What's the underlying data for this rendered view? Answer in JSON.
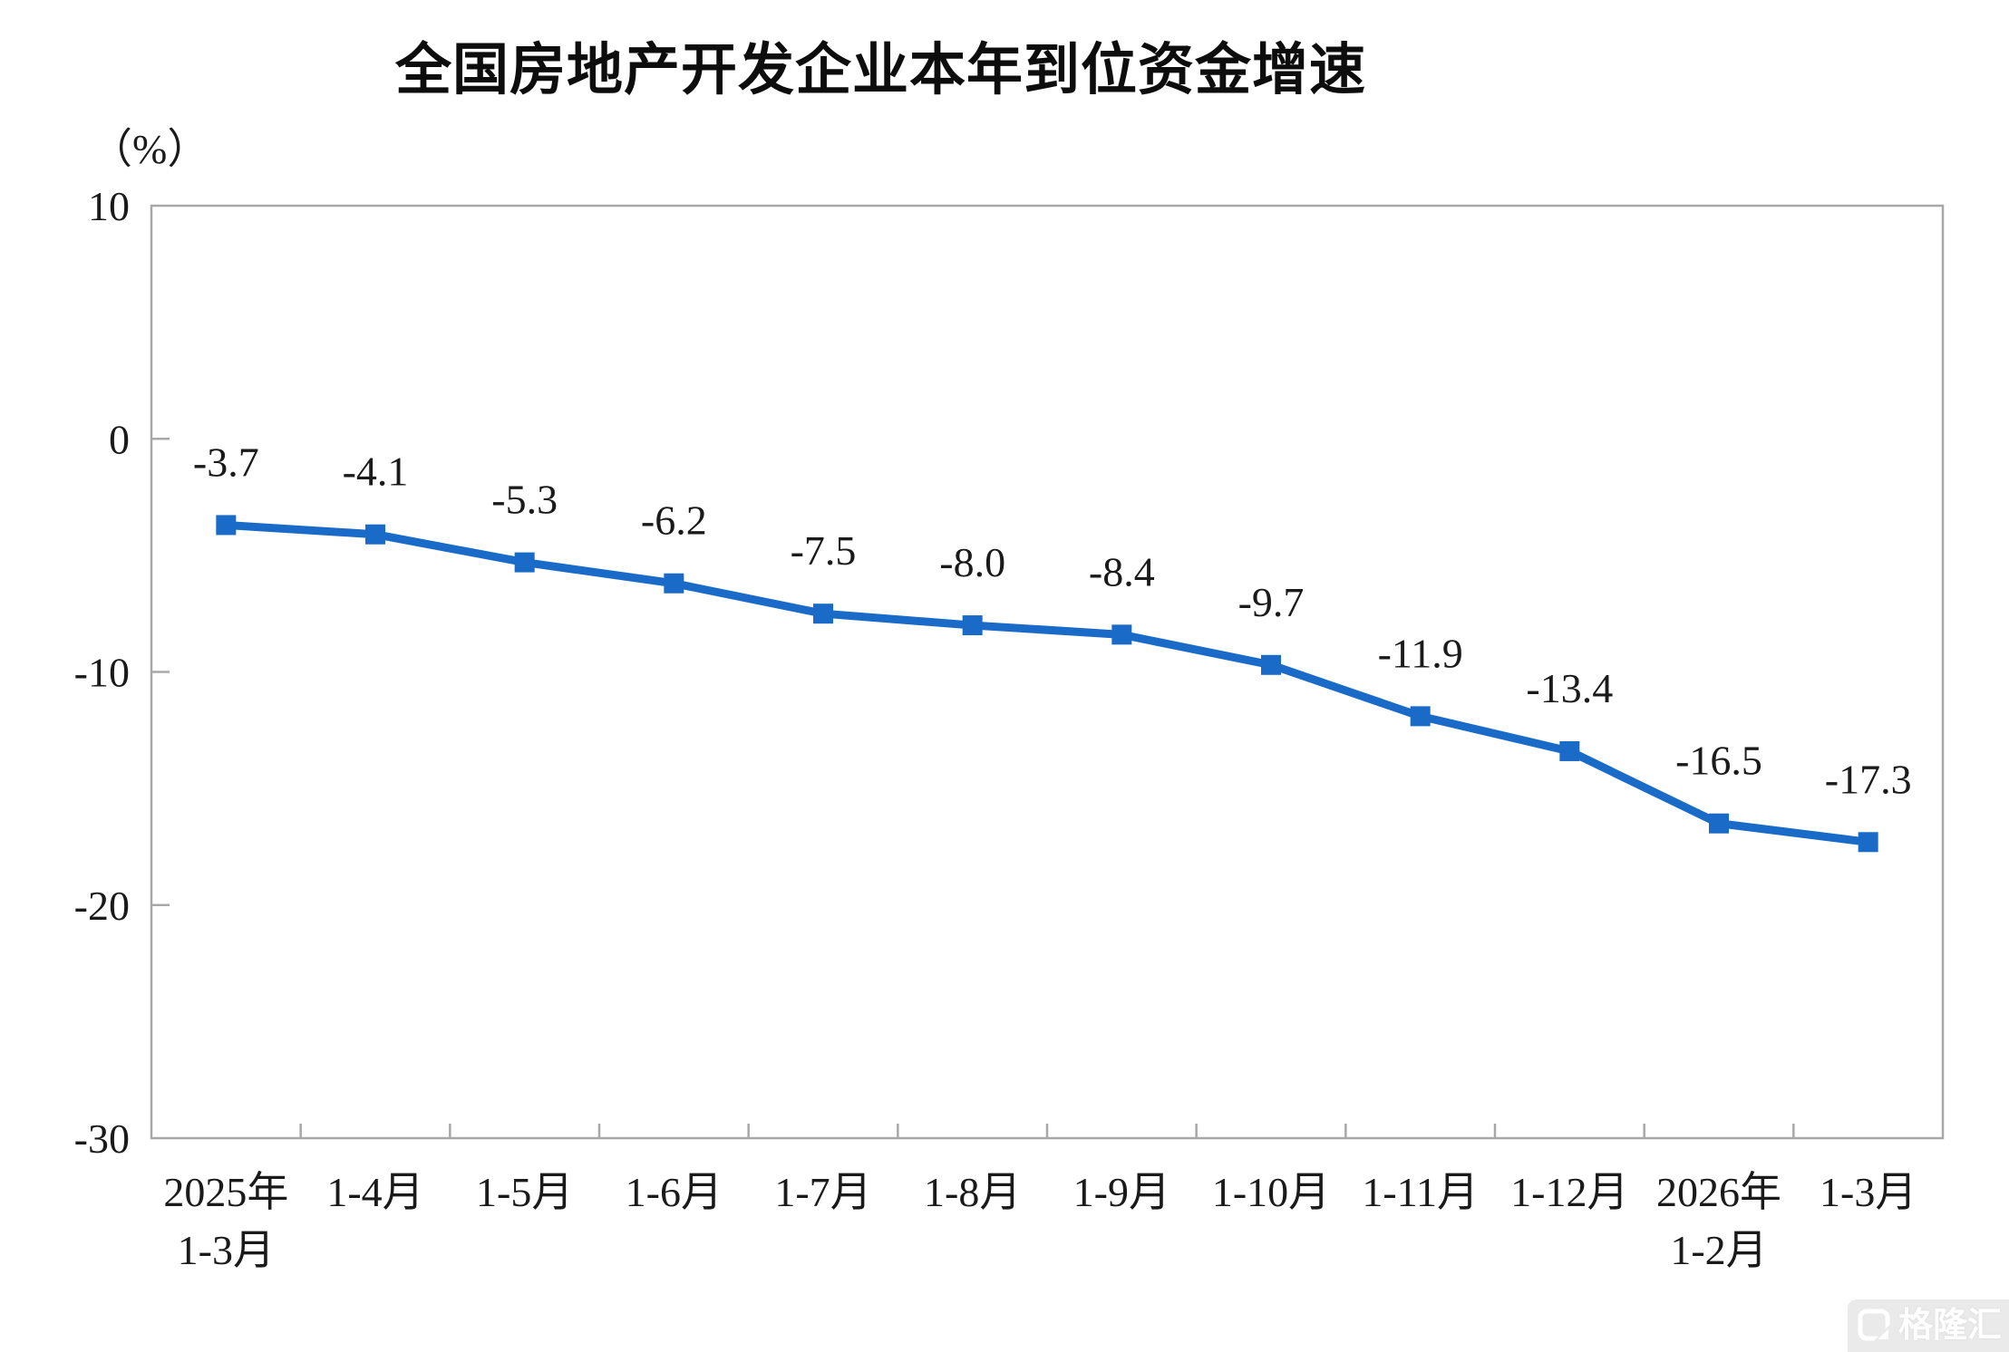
{
  "page": {
    "background": "#ffffff"
  },
  "chart_data": {
    "type": "line",
    "title": "全国房地产开发企业本年到位资金增速",
    "unit_label": "（%）",
    "categories": [
      [
        "2025年",
        "1-3月"
      ],
      [
        "1-4月"
      ],
      [
        "1-5月"
      ],
      [
        "1-6月"
      ],
      [
        "1-7月"
      ],
      [
        "1-8月"
      ],
      [
        "1-9月"
      ],
      [
        "1-10月"
      ],
      [
        "1-11月"
      ],
      [
        "1-12月"
      ],
      [
        "2026年",
        "1-2月"
      ],
      [
        "1-3月"
      ]
    ],
    "values": [
      -3.7,
      -4.1,
      -5.3,
      -6.2,
      -7.5,
      -8.0,
      -8.4,
      -9.7,
      -11.9,
      -13.4,
      -16.5,
      -17.3
    ],
    "data_labels": [
      "-3.7",
      "-4.1",
      "-5.3",
      "-6.2",
      "-7.5",
      "-8.0",
      "-8.4",
      "-9.7",
      "-11.9",
      "-13.4",
      "-16.5",
      "-17.3"
    ],
    "y_ticks": [
      10,
      0,
      -10,
      -20,
      -30
    ],
    "ylim": [
      -30,
      10
    ],
    "xlabel": "",
    "ylabel": "（%）",
    "grid": false,
    "legend_position": "none",
    "line_color": "#1a6bc8",
    "marker": "square",
    "axis_color": "#a8a8a8",
    "text_color": "#1a1a1a"
  },
  "watermark": {
    "logo": "gelonghui-logo",
    "text": "格隆汇"
  }
}
